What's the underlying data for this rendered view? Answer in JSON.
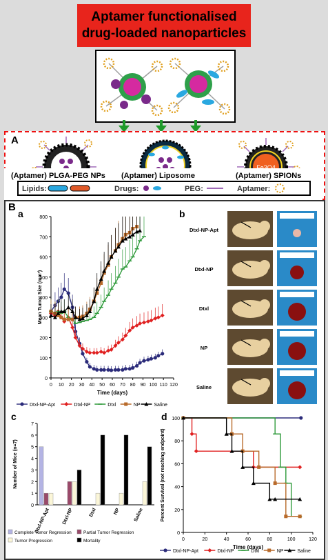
{
  "title": {
    "line1": "Aptamer functionalised",
    "line2": "drug-loaded nanoparticles"
  },
  "panelA": {
    "label": "A",
    "np1": "(Aptamer) PLGA-PEG NPs",
    "np2": "(Aptamer) Liposome",
    "np3": "(Aptamer) SPIONs",
    "spion_core": "Fe3O4",
    "legend": {
      "lipids": "Lipids:",
      "drugs": "Drugs:",
      "peg": "PEG:",
      "aptamer": "Aptamer:"
    }
  },
  "panelB": {
    "label": "B",
    "a": {
      "label": "a"
    },
    "b": {
      "label": "b",
      "groups": [
        "Dtxl-NP-Apt",
        "Dtxl-NP",
        "Dtxl",
        "NP",
        "Saline"
      ]
    },
    "c": {
      "label": "c"
    },
    "d": {
      "label": "d"
    }
  },
  "colors": {
    "apt": "#2b2b7a",
    "dnp": "#e02020",
    "dtxl": "#2e9a3a",
    "np": "#b86a2a",
    "saline": "#000000"
  },
  "chart_data": [
    {
      "type": "line",
      "xlabel": "Time (days)",
      "ylabel": "Mean Tumor Size (mm³)",
      "xlim": [
        0,
        120
      ],
      "ylim": [
        0,
        800
      ],
      "xticks": [
        0,
        10,
        20,
        30,
        40,
        50,
        60,
        70,
        80,
        90,
        100,
        110,
        120
      ],
      "yticks": [
        0,
        100,
        200,
        300,
        400,
        500,
        600,
        700,
        800
      ],
      "series": [
        {
          "name": "Dtxl-NP-Apt",
          "color": "#2b2b7a",
          "marker": "circle",
          "x": [
            0,
            4,
            7,
            10,
            13,
            17,
            21,
            24,
            28,
            31,
            35,
            38,
            42,
            45,
            49,
            52,
            56,
            59,
            63,
            66,
            70,
            73,
            77,
            80,
            84,
            87,
            91,
            95,
            98,
            102,
            105,
            109
          ],
          "y": [
            330,
            360,
            380,
            400,
            440,
            420,
            350,
            230,
            170,
            120,
            80,
            55,
            45,
            40,
            40,
            40,
            40,
            38,
            40,
            40,
            40,
            45,
            45,
            50,
            60,
            75,
            85,
            90,
            95,
            100,
            110,
            120
          ]
        },
        {
          "name": "Dtxl-NP",
          "color": "#e02020",
          "marker": "diamond",
          "x": [
            0,
            4,
            7,
            10,
            13,
            17,
            21,
            24,
            28,
            31,
            35,
            38,
            42,
            45,
            49,
            52,
            56,
            59,
            63,
            66,
            70,
            73,
            77,
            80,
            84,
            87,
            91,
            95,
            98,
            102,
            105,
            109
          ],
          "y": [
            320,
            310,
            330,
            300,
            280,
            300,
            250,
            200,
            160,
            145,
            130,
            125,
            125,
            125,
            130,
            125,
            135,
            140,
            160,
            175,
            190,
            210,
            235,
            250,
            260,
            270,
            275,
            280,
            285,
            295,
            300,
            310
          ]
        },
        {
          "name": "Dtxl",
          "color": "#2e9a3a",
          "marker": "dash",
          "x": [
            0,
            4,
            7,
            10,
            13,
            17,
            21,
            24,
            28,
            31,
            35,
            38,
            42,
            45,
            49,
            52,
            56,
            59,
            63,
            66,
            70,
            73,
            77,
            80,
            84,
            87,
            91
          ],
          "y": [
            330,
            320,
            330,
            320,
            330,
            300,
            290,
            270,
            275,
            280,
            285,
            290,
            300,
            320,
            350,
            380,
            410,
            440,
            470,
            500,
            540,
            550,
            580,
            600,
            640,
            680,
            700
          ]
        },
        {
          "name": "NP",
          "color": "#b86a2a",
          "marker": "square",
          "x": [
            0,
            4,
            7,
            10,
            13,
            17,
            21,
            24,
            28,
            31,
            35,
            38,
            42,
            45,
            49,
            52,
            56,
            59,
            63,
            66,
            70,
            73,
            77,
            80,
            84
          ],
          "y": [
            330,
            320,
            310,
            300,
            290,
            290,
            290,
            300,
            300,
            305,
            320,
            340,
            380,
            420,
            470,
            520,
            560,
            600,
            630,
            660,
            690,
            710,
            720,
            740,
            750
          ]
        },
        {
          "name": "Saline",
          "color": "#000000",
          "marker": "triangle",
          "x": [
            0,
            4,
            7,
            10,
            13,
            17,
            21,
            24,
            28,
            31,
            35,
            38,
            42,
            45,
            49,
            52,
            56,
            59,
            63,
            66,
            70,
            73,
            77,
            80,
            84,
            87
          ],
          "y": [
            310,
            300,
            320,
            330,
            330,
            350,
            330,
            300,
            290,
            295,
            310,
            330,
            380,
            440,
            490,
            530,
            570,
            600,
            630,
            650,
            680,
            690,
            700,
            710,
            725,
            730
          ]
        }
      ]
    },
    {
      "type": "bar",
      "ylabel": "Number of Mice (n=7)",
      "ylim": [
        0,
        7
      ],
      "yticks": [
        0,
        1,
        2,
        3,
        4,
        5,
        6,
        7
      ],
      "categories": [
        "Dtxl-NP-Apt",
        "Dtxl-NP",
        "Dtxl",
        "NP",
        "Saline"
      ],
      "series": [
        {
          "name": "Complete Tumor Regression",
          "color": "#b4b4e4",
          "values": [
            5,
            0,
            0,
            0,
            0
          ]
        },
        {
          "name": "Partial Tumor Regression",
          "color": "#9a4a6a",
          "values": [
            1,
            2,
            0,
            0,
            0
          ]
        },
        {
          "name": "Tumor Progression",
          "color": "#fbf6d8",
          "values": [
            1,
            2,
            1,
            1,
            2
          ]
        },
        {
          "name": "Mortality",
          "color": "#000000",
          "values": [
            0,
            3,
            6,
            6,
            5
          ]
        }
      ]
    },
    {
      "type": "line",
      "xlabel": "Time (days)",
      "ylabel": "Percent Survival (not reaching endpoint)",
      "xlim": [
        0,
        120
      ],
      "ylim": [
        0,
        100
      ],
      "xticks": [
        0,
        20,
        40,
        60,
        80,
        100,
        120
      ],
      "yticks": [
        0,
        20,
        40,
        60,
        80,
        100
      ],
      "series": [
        {
          "name": "Dtxl-NP-Apt",
          "color": "#2b2b7a",
          "marker": "circle",
          "x": [
            0,
            109
          ],
          "y": [
            100,
            100
          ]
        },
        {
          "name": "Dtxl-NP",
          "color": "#e02020",
          "marker": "diamond",
          "x": [
            0,
            8,
            12,
            55,
            65,
            108
          ],
          "y": [
            100,
            86,
            71,
            71,
            57,
            57
          ]
        },
        {
          "name": "Dtxl",
          "color": "#2e9a3a",
          "marker": "dash",
          "x": [
            0,
            85,
            90,
            95,
            100,
            108
          ],
          "y": [
            100,
            86,
            57,
            43,
            14,
            14
          ]
        },
        {
          "name": "NP",
          "color": "#b86a2a",
          "marker": "square",
          "x": [
            0,
            45,
            55,
            70,
            85,
            95,
            108
          ],
          "y": [
            100,
            86,
            71,
            57,
            43,
            14,
            14
          ]
        },
        {
          "name": "Saline",
          "color": "#000000",
          "marker": "triangle",
          "x": [
            0,
            40,
            45,
            55,
            65,
            80,
            85,
            108
          ],
          "y": [
            100,
            86,
            71,
            57,
            43,
            29,
            29,
            29
          ]
        }
      ]
    }
  ]
}
